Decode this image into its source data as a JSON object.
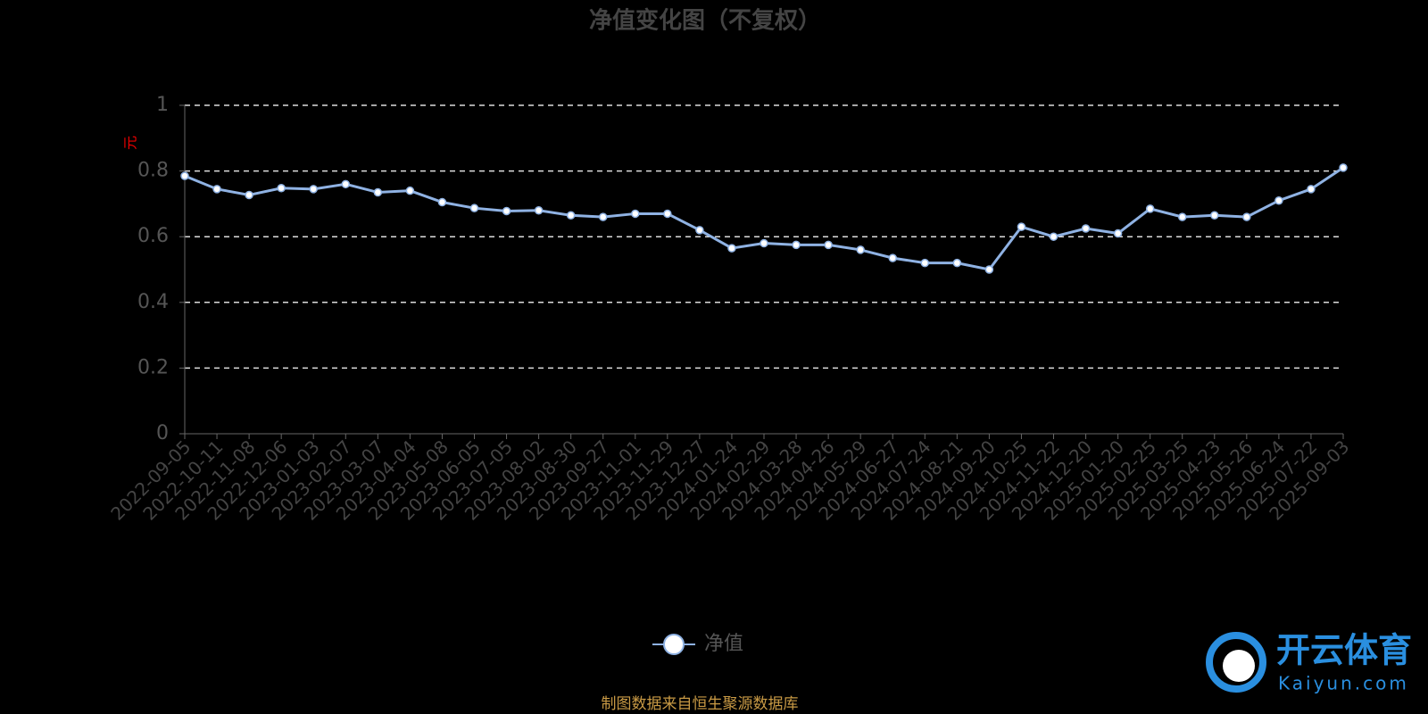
{
  "chart_data": {
    "type": "line",
    "title": "净值变化图（不复权）",
    "y_label": "元",
    "categories": [
      "2022-09-05",
      "2022-10-11",
      "2022-11-08",
      "2022-12-06",
      "2023-01-03",
      "2023-02-07",
      "2023-03-07",
      "2023-04-04",
      "2023-05-08",
      "2023-06-05",
      "2023-07-05",
      "2023-08-02",
      "2023-08-30",
      "2023-09-27",
      "2023-11-01",
      "2023-11-29",
      "2023-12-27",
      "2024-01-24",
      "2024-02-29",
      "2024-03-28",
      "2024-04-26",
      "2024-05-29",
      "2024-06-27",
      "2024-07-24",
      "2024-08-21",
      "2024-09-20",
      "2024-10-25",
      "2024-11-22",
      "2024-12-20",
      "2025-01-20",
      "2025-02-25",
      "2025-03-25",
      "2025-04-23",
      "2025-05-26",
      "2025-06-24",
      "2025-07-22",
      "2025-09-03"
    ],
    "series": [
      {
        "name": "净值",
        "color": "#8fb2e3",
        "values": [
          0.785,
          0.745,
          0.727,
          0.748,
          0.745,
          0.76,
          0.735,
          0.74,
          0.705,
          0.687,
          0.678,
          0.68,
          0.665,
          0.66,
          0.67,
          0.67,
          0.62,
          0.565,
          0.58,
          0.575,
          0.575,
          0.56,
          0.535,
          0.52,
          0.52,
          0.5,
          0.63,
          0.6,
          0.625,
          0.61,
          0.685,
          0.66,
          0.665,
          0.66,
          0.71,
          0.745,
          0.81
        ]
      }
    ],
    "ylim": [
      0,
      1
    ],
    "yticks": [
      0,
      0.2,
      0.4,
      0.6,
      0.8,
      1
    ],
    "grid": true,
    "source": "制图数据来自恒生聚源数据库",
    "watermark": [
      "开云体育",
      "Kaiyun.com"
    ]
  }
}
